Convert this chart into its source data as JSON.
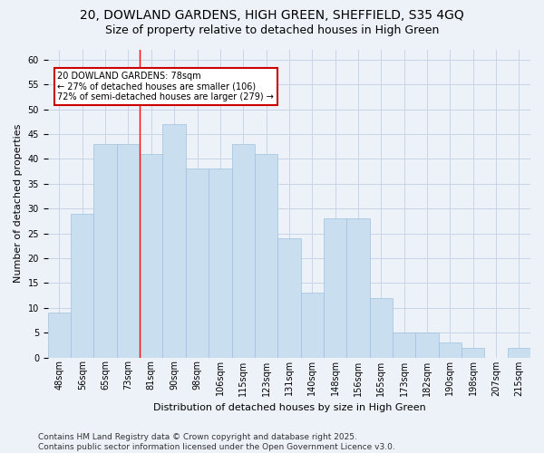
{
  "title_line1": "20, DOWLAND GARDENS, HIGH GREEN, SHEFFIELD, S35 4GQ",
  "title_line2": "Size of property relative to detached houses in High Green",
  "xlabel": "Distribution of detached houses by size in High Green",
  "ylabel": "Number of detached properties",
  "categories": [
    "48sqm",
    "56sqm",
    "65sqm",
    "73sqm",
    "81sqm",
    "90sqm",
    "98sqm",
    "106sqm",
    "115sqm",
    "123sqm",
    "131sqm",
    "140sqm",
    "148sqm",
    "156sqm",
    "165sqm",
    "173sqm",
    "182sqm",
    "190sqm",
    "198sqm",
    "207sqm",
    "215sqm"
  ],
  "values": [
    9,
    29,
    43,
    43,
    41,
    47,
    38,
    38,
    43,
    41,
    24,
    13,
    28,
    28,
    12,
    5,
    5,
    3,
    2,
    0,
    2
  ],
  "bar_color": "#c9dff0",
  "bar_edge_color": "#a0c0df",
  "bar_linewidth": 0.5,
  "annotation_text": "20 DOWLAND GARDENS: 78sqm\n← 27% of detached houses are smaller (106)\n72% of semi-detached houses are larger (279) →",
  "annotation_fontsize": 7,
  "annotation_box_color": "white",
  "annotation_box_edgecolor": "#cc0000",
  "ylim_max": 62,
  "yticks": [
    0,
    5,
    10,
    15,
    20,
    25,
    30,
    35,
    40,
    45,
    50,
    55,
    60
  ],
  "grid_color": "#c8d4e8",
  "background_color": "#edf2f9",
  "title_fontsize": 10,
  "subtitle_fontsize": 9,
  "axis_label_fontsize": 8,
  "tick_fontsize": 7,
  "footer_text": "Contains HM Land Registry data © Crown copyright and database right 2025.\nContains public sector information licensed under the Open Government Licence v3.0.",
  "footer_fontsize": 6.5
}
